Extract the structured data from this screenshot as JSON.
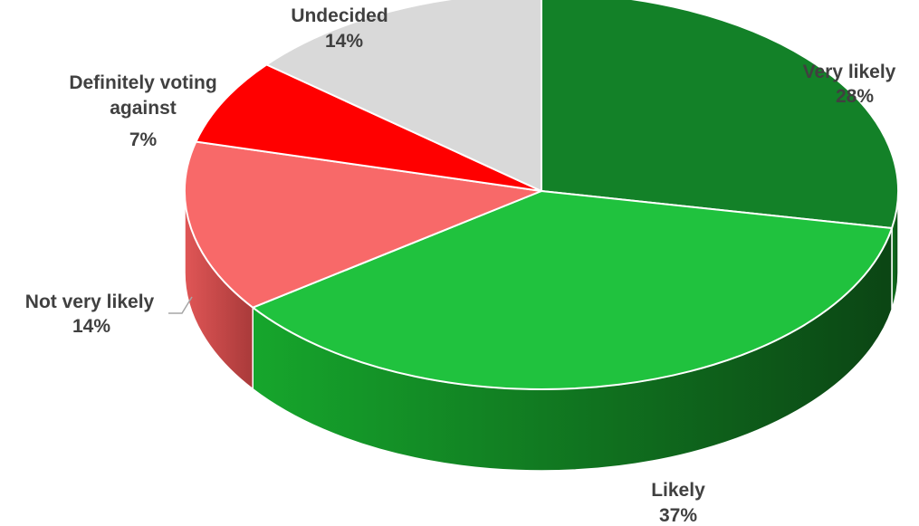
{
  "chart_data": {
    "type": "pie",
    "style": "3d",
    "title": "",
    "slices": [
      {
        "label": "Very likely",
        "value": 28,
        "value_label": "28%",
        "color": "#138128",
        "side_dark": "#0b4a16",
        "side_light": "#12781f"
      },
      {
        "label": "Likely",
        "value": 37,
        "value_label": "37%",
        "color": "#20c23e",
        "side_dark": "#0b4514",
        "side_light": "#16a62c"
      },
      {
        "label": "Not very likely",
        "value": 14,
        "value_label": "14%",
        "color": "#f86969",
        "side_dark": "#a93a3a",
        "side_light": "#e05656"
      },
      {
        "label": "Definitely voting against",
        "value": 7,
        "value_label": "7%",
        "color": "#ff0000",
        "side_dark": "#a00000",
        "side_light": "#e00000"
      },
      {
        "label": "Undecided",
        "value": 14,
        "value_label": "14%",
        "color": "#d9d9d9",
        "side_dark": "#8c8c8c",
        "side_light": "#c4c4c4"
      }
    ],
    "legend": "none",
    "label_placement": "outside"
  }
}
